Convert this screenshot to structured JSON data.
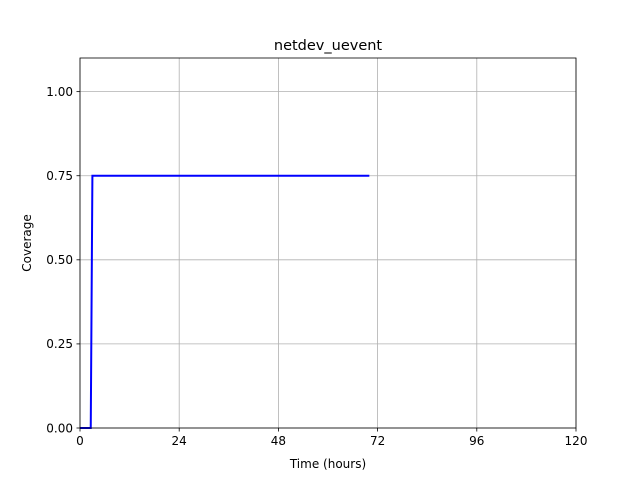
{
  "chart_data": {
    "type": "line",
    "title": "netdev_uevent",
    "xlabel": "Time (hours)",
    "ylabel": "Coverage",
    "xlim": [
      0,
      120
    ],
    "ylim": [
      0,
      1.1
    ],
    "xticks": [
      0,
      24,
      48,
      72,
      96,
      120
    ],
    "xtick_labels": [
      "0",
      "24",
      "48",
      "72",
      "96",
      "120"
    ],
    "yticks": [
      0,
      0.25,
      0.5,
      0.75,
      1.0
    ],
    "ytick_labels": [
      "0.00",
      "0.25",
      "0.50",
      "0.75",
      "1.00"
    ],
    "grid": true,
    "legend": false,
    "series": [
      {
        "color": "#0000ff",
        "x": [
          0,
          2.6,
          3.0,
          70.0
        ],
        "y": [
          0,
          0,
          0.75,
          0.75
        ]
      }
    ]
  }
}
